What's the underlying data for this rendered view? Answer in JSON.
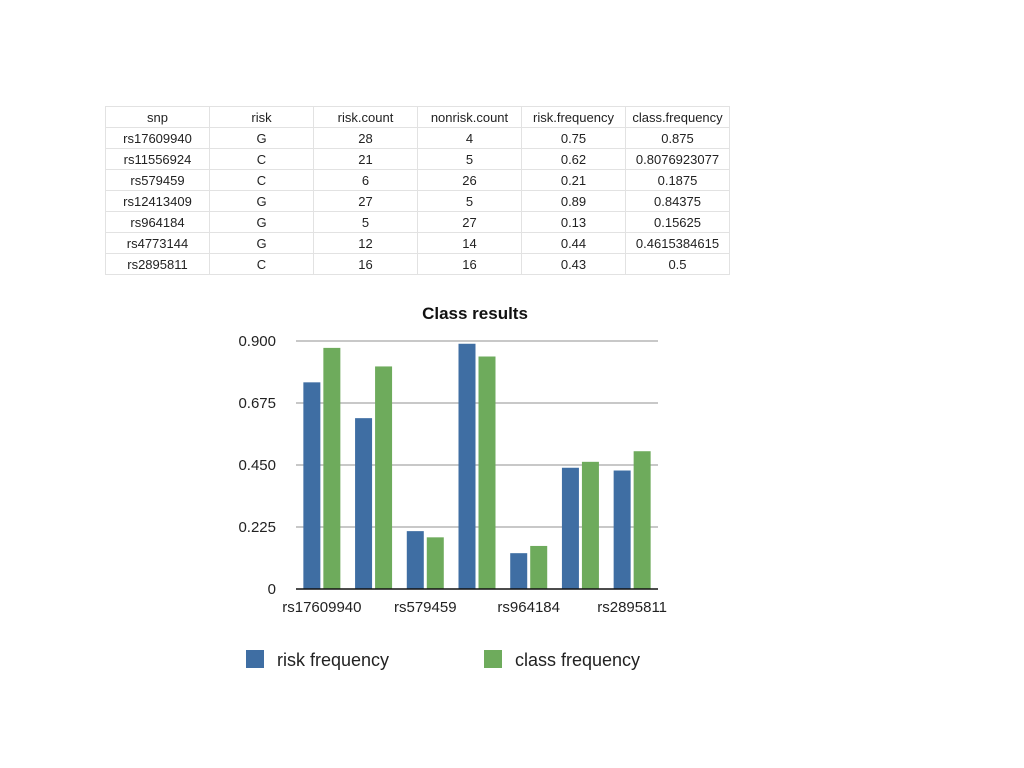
{
  "table": {
    "headers": [
      "snp",
      "risk",
      "risk.count",
      "nonrisk.count",
      "risk.frequency",
      "class.frequency"
    ],
    "rows": [
      [
        "rs17609940",
        "G",
        "28",
        "4",
        "0.75",
        "0.875"
      ],
      [
        "rs11556924",
        "C",
        "21",
        "5",
        "0.62",
        "0.8076923077"
      ],
      [
        "rs579459",
        "C",
        "6",
        "26",
        "0.21",
        "0.1875"
      ],
      [
        "rs12413409",
        "G",
        "27",
        "5",
        "0.89",
        "0.84375"
      ],
      [
        "rs964184",
        "G",
        "5",
        "27",
        "0.13",
        "0.15625"
      ],
      [
        "rs4773144",
        "G",
        "12",
        "14",
        "0.44",
        "0.4615384615"
      ],
      [
        "rs2895811",
        "C",
        "16",
        "16",
        "0.43",
        "0.5"
      ]
    ]
  },
  "chart_data": {
    "type": "bar",
    "title": "Class results",
    "xlabel": "",
    "ylabel": "",
    "categories": [
      "rs17609940",
      "rs11556924",
      "rs579459",
      "rs12413409",
      "rs964184",
      "rs4773144",
      "rs2895811"
    ],
    "x_tick_labels_shown": [
      "rs17609940",
      "",
      "rs579459",
      "",
      "rs964184",
      "",
      "rs2895811"
    ],
    "series": [
      {
        "name": "risk frequency",
        "color": "#3f6ea3",
        "values": [
          0.75,
          0.62,
          0.21,
          0.89,
          0.13,
          0.44,
          0.43
        ]
      },
      {
        "name": "class frequency",
        "color": "#6eab5c",
        "values": [
          0.875,
          0.8076923077,
          0.1875,
          0.84375,
          0.15625,
          0.4615384615,
          0.5
        ]
      }
    ],
    "ylim": [
      0,
      0.9
    ],
    "yticks": [
      "0",
      "0.225",
      "0.450",
      "0.675",
      "0.900"
    ],
    "grid": true,
    "legend_position": "bottom"
  }
}
